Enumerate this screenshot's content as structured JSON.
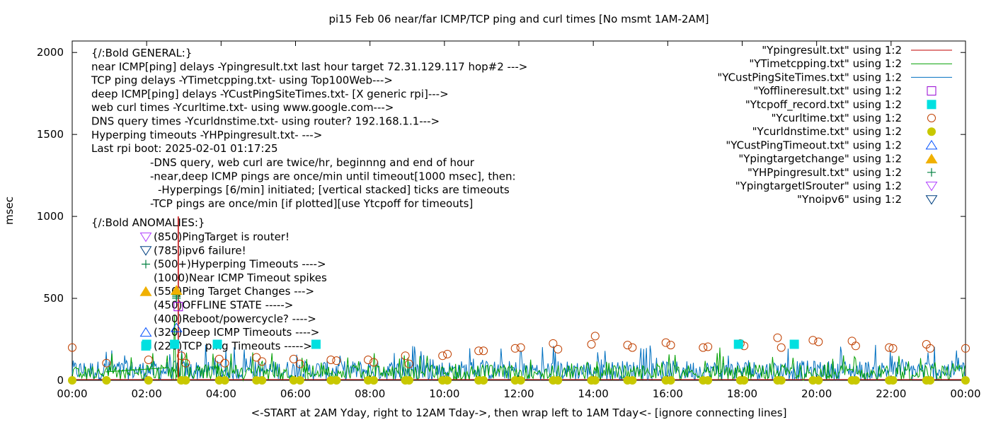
{
  "chart_data": {
    "type": "line",
    "title": "pi15 Feb 06  near/far ICMP/TCP ping and curl times [No msmt 1AM-2AM]",
    "xlabel": "<-START at 2AM Yday, right to 12AM Tday->, then wrap left to 1AM Tday<- [ignore connecting lines]",
    "ylabel": "msec",
    "xlim": [
      0,
      24
    ],
    "ylim": [
      0,
      2070
    ],
    "x_tick_labels": [
      "00:00",
      "02:00",
      "04:00",
      "06:00",
      "08:00",
      "10:00",
      "12:00",
      "14:00",
      "16:00",
      "18:00",
      "20:00",
      "22:00",
      "00:00"
    ],
    "y_tick_labels": [
      "0",
      "500",
      "1000",
      "1500",
      "2000"
    ],
    "y_ticks": [
      0,
      500,
      1000,
      1500,
      2000
    ],
    "grid": false,
    "legend_position": "top-right",
    "legend": [
      {
        "label": "\"Ypingresult.txt\" using 1:2",
        "style": "line",
        "color": "#c00000"
      },
      {
        "label": "\"YTimetcpping.txt\" using 1:2",
        "style": "line",
        "color": "#00a000"
      },
      {
        "label": "\"YCustPingSiteTimes.txt\" using 1:2",
        "style": "line",
        "color": "#0070c0"
      },
      {
        "label": "\"Yofflineresult.txt\" using 1:2",
        "style": "open-square",
        "color": "#9400d3"
      },
      {
        "label": "\"Ytcpoff_record.txt\" using 1:2",
        "style": "filled-square",
        "color": "#00e0e0"
      },
      {
        "label": "\"Ycurltime.txt\" using 1:2",
        "style": "open-circle",
        "color": "#c04000"
      },
      {
        "label": "\"Ycurldnstime.txt\" using 1:2",
        "style": "filled-circle",
        "color": "#c8c800"
      },
      {
        "label": "\"YCustPingTimeout.txt\" using 1:2",
        "style": "open-triangle-up",
        "color": "#0050ff"
      },
      {
        "label": "\"Ypingtargetchange\" using 1:2",
        "style": "filled-triangle-up",
        "color": "#f0b000"
      },
      {
        "label": "\"YHPpingresult.txt\" using 1:2",
        "style": "plus",
        "color": "#008040"
      },
      {
        "label": "\"YpingtargetISrouter\" using 1:2",
        "style": "open-triangle-down",
        "color": "#b040ff"
      },
      {
        "label": "\"Ynoipv6\" using 1:2",
        "style": "open-triangle-down",
        "color": "#004080"
      }
    ],
    "annotations": {
      "general": [
        "{/:Bold GENERAL:}",
        "near ICMP[ping] delays -Ypingresult.txt last hour target 72.31.129.117 hop#2 --->",
        "TCP ping delays -YTimetcpping.txt- using Top100Web--->",
        "deep ICMP[ping] delays -YCustPingSiteTimes.txt- [X generic rpi]--->",
        "web curl times -Ycurltime.txt- using www.google.com--->",
        "DNS query times -Ycurldnstime.txt- using router? 192.168.1.1--->",
        "Hyperping timeouts -YHPpingresult.txt- --->",
        "Last rpi boot: 2025-02-01 01:17:25"
      ],
      "notes": [
        "-DNS query, web curl are twice/hr, beginnng and end of hour",
        "-near,deep ICMP pings are once/min until timeout[1000 msec], then:",
        "-Hyperpings [6/min] initiated; [vertical stacked] ticks are timeouts",
        "-TCP pings are once/min [if plotted][use Ytcpoff for timeouts]"
      ],
      "anomalies_title": "{/:Bold ANOMALIES:}",
      "anomalies": [
        {
          "text": "(850)PingTarget is router!",
          "y": 850,
          "marker": "open-triangle-down",
          "color": "#b040ff"
        },
        {
          "text": "(785)ipv6 failure!",
          "y": 785,
          "marker": "open-triangle-down",
          "color": "#004080"
        },
        {
          "text": "(500+)Hyperping Timeouts ---->",
          "y": 700,
          "marker": "plus",
          "color": "#008040"
        },
        {
          "text": "(1000)Near ICMP Timeout spikes",
          "y": 620,
          "marker": "none",
          "color": "#000000"
        },
        {
          "text": "(550)Ping Target Changes --->",
          "y": 550,
          "marker": "filled-triangle-up",
          "color": "#f0b000"
        },
        {
          "text": "(450)OFFLINE STATE ----->",
          "y": 450,
          "marker": "none",
          "color": "#000000"
        },
        {
          "text": "(400)Reboot/powercycle? ---->",
          "y": 400,
          "marker": "none",
          "color": "#000000"
        },
        {
          "text": "(320)Deep ICMP Timeouts ---->",
          "y": 320,
          "marker": "open-triangle-up",
          "color": "#0050ff"
        },
        {
          "text": "(220)TCP ping Timeouts ----->",
          "y": 220,
          "marker": "filled-square",
          "color": "#00e0e0"
        }
      ]
    },
    "series": [
      {
        "name": "\"Ycurltime.txt\" using 1:2",
        "marker": "open-circle",
        "color": "#c04000",
        "x": [
          0.0,
          0.92,
          2.05,
          2.93,
          3.05,
          3.95,
          4.1,
          4.95,
          5.1,
          5.95,
          6.12,
          6.95,
          7.1,
          7.95,
          8.1,
          8.95,
          9.05,
          9.95,
          10.08,
          10.92,
          11.05,
          11.9,
          12.05,
          12.92,
          13.05,
          13.95,
          14.05,
          14.92,
          15.05,
          15.95,
          16.08,
          16.95,
          17.08,
          17.95,
          18.05,
          18.95,
          19.05,
          19.9,
          20.05,
          20.95,
          21.05,
          21.95,
          22.05,
          22.95,
          23.05,
          24.0
        ],
        "y": [
          200,
          105,
          125,
          150,
          105,
          130,
          105,
          140,
          115,
          130,
          100,
          125,
          120,
          125,
          110,
          150,
          100,
          150,
          160,
          180,
          180,
          195,
          200,
          225,
          190,
          220,
          270,
          215,
          200,
          230,
          215,
          200,
          205,
          225,
          210,
          260,
          200,
          245,
          235,
          240,
          210,
          200,
          195,
          220,
          195,
          195
        ]
      },
      {
        "name": "\"Ytcpoff_record.txt\" using 1:2",
        "marker": "filled-square",
        "color": "#00e0e0",
        "x": [
          2.0,
          2.75,
          3.9,
          6.55,
          17.9,
          19.4
        ],
        "y": [
          220,
          220,
          220,
          220,
          220,
          220
        ]
      },
      {
        "name": "\"Ycurldnstime.txt\" using 1:2",
        "marker": "filled-circle",
        "color": "#c8c800",
        "x": [
          0.0,
          0.92,
          2.05,
          2.93,
          3.05,
          3.95,
          4.1,
          4.95,
          5.1,
          5.95,
          6.12,
          6.95,
          7.1,
          7.95,
          8.1,
          8.95,
          9.05,
          9.95,
          10.08,
          10.92,
          11.05,
          11.9,
          12.05,
          12.92,
          13.05,
          13.95,
          14.05,
          14.92,
          15.05,
          15.95,
          16.08,
          16.95,
          17.08,
          17.95,
          18.05,
          18.95,
          19.05,
          19.9,
          20.05,
          20.95,
          21.05,
          21.95,
          22.05,
          22.95,
          23.05,
          24.0
        ],
        "y": [
          0,
          0,
          0,
          0,
          0,
          0,
          0,
          0,
          0,
          0,
          0,
          0,
          0,
          0,
          0,
          0,
          0,
          0,
          0,
          0,
          0,
          0,
          0,
          0,
          0,
          0,
          0,
          0,
          0,
          0,
          0,
          0,
          0,
          0,
          0,
          0,
          0,
          0,
          0,
          0,
          0,
          0,
          0,
          0,
          0,
          0
        ]
      },
      {
        "name": "\"YTimetcpping.txt\" using 1:2",
        "style": "line",
        "color": "#00a000",
        "noise_level": "0-80",
        "spikes": [
          {
            "x": 2.75,
            "y": 400
          },
          {
            "x": 3.9,
            "y": 110
          },
          {
            "x": 6.3,
            "y": 130
          },
          {
            "x": 10.3,
            "y": 100
          },
          {
            "x": 14.1,
            "y": 115
          },
          {
            "x": 17.4,
            "y": 200
          },
          {
            "x": 18.2,
            "y": 110
          },
          {
            "x": 20.3,
            "y": 110
          }
        ]
      },
      {
        "name": "\"YCustPingSiteTimes.txt\" using 1:2",
        "style": "line",
        "color": "#0070c0",
        "noise_level": "0-100"
      },
      {
        "name": "\"Ypingresult.txt\" using 1:2",
        "style": "line",
        "color": "#c00000",
        "baseline": 5,
        "spikes": [
          {
            "x": 2.85,
            "y": 1000
          }
        ]
      },
      {
        "name": "\"YHPpingresult.txt\" using 1:2",
        "marker": "plus",
        "color": "#008040",
        "x": [
          2.8,
          2.8,
          2.8,
          2.8,
          2.8
        ],
        "y": [
          500,
          510,
          520,
          530,
          540
        ]
      },
      {
        "name": "\"Yofflineresult.txt\" using 1:2",
        "marker": "open-square",
        "color": "#9400d3",
        "x": [
          2.85
        ],
        "y": [
          450
        ]
      },
      {
        "name": "\"YCustPingTimeout.txt\" using 1:2",
        "marker": "open-triangle-up",
        "color": "#0050ff",
        "x": [
          2.8
        ],
        "y": [
          320
        ]
      },
      {
        "name": "\"Ypingtargetchange\" using 1:2",
        "marker": "filled-triangle-up",
        "color": "#f0b000",
        "x": [
          2.8
        ],
        "y": [
          550
        ]
      }
    ]
  }
}
